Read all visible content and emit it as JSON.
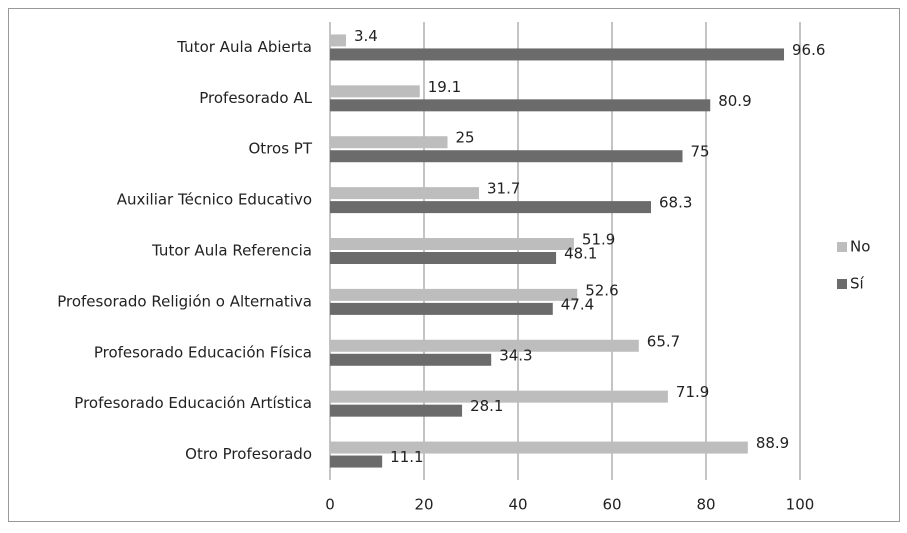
{
  "chart_data": {
    "type": "bar",
    "orientation": "horizontal",
    "categories": [
      "Tutor Aula Abierta",
      "Profesorado AL",
      "Otros PT",
      "Auxiliar Técnico Educativo",
      "Tutor Aula Referencia",
      "Profesorado Religión o Alternativa",
      "Profesorado Educación Física",
      "Profesorado Educación Artística",
      "Otro Profesorado"
    ],
    "series": [
      {
        "name": "No",
        "color": "#bdbdbd",
        "values": [
          3.4,
          19.1,
          25,
          31.7,
          51.9,
          52.6,
          65.7,
          71.9,
          88.9
        ]
      },
      {
        "name": "Sí",
        "color": "#6b6b6b",
        "values": [
          96.6,
          80.9,
          75,
          68.3,
          48.1,
          47.4,
          34.3,
          28.1,
          11.1
        ]
      }
    ],
    "xlim": [
      0,
      100
    ],
    "xticks": [
      0,
      20,
      40,
      60,
      80,
      100
    ],
    "grid": true,
    "legend": "right"
  }
}
